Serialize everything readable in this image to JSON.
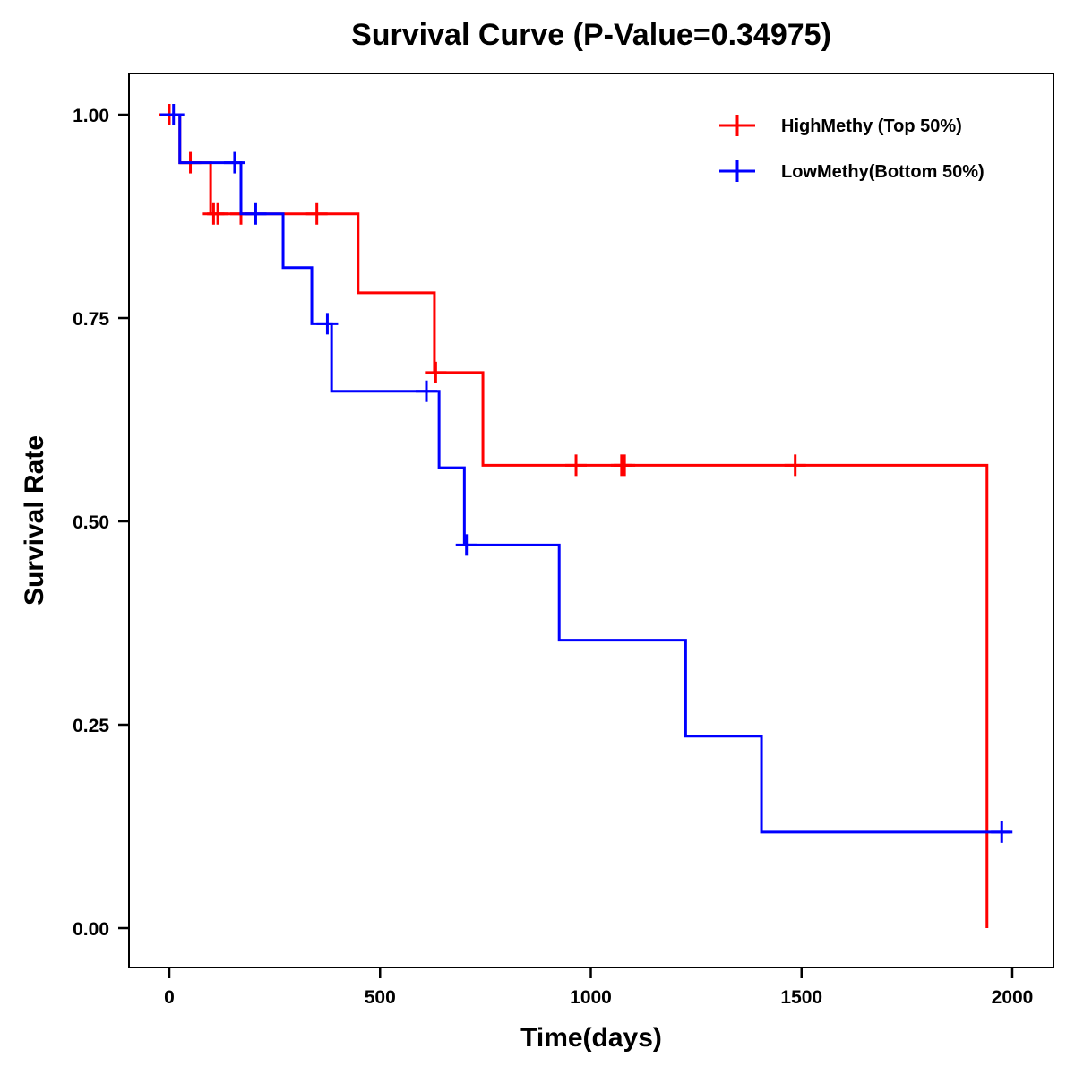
{
  "chart_data": {
    "type": "line",
    "subtype": "kaplan-meier-step",
    "title": "Survival Curve (P-Value=0.34975)",
    "xlabel": "Time(days)",
    "ylabel": "Survival Rate",
    "xlim": [
      -100,
      2080
    ],
    "ylim": [
      -0.05,
      1.05
    ],
    "x_ticks": [
      0,
      500,
      1000,
      1500,
      2000
    ],
    "x_tick_labels": [
      "0",
      "500",
      "1000",
      "1500",
      "2000"
    ],
    "y_ticks": [
      0.0,
      0.25,
      0.5,
      0.75,
      1.0
    ],
    "y_tick_labels": [
      "0.00",
      "0.25",
      "0.50",
      "0.75",
      "1.00"
    ],
    "grid": false,
    "legend_position": "top-right",
    "series": [
      {
        "name": "HighMethy (Top 50%)",
        "color": "#ff0000",
        "steps": [
          {
            "t": 0,
            "s": 1.0
          },
          {
            "t": 25,
            "s": 0.941
          },
          {
            "t": 98,
            "s": 0.878
          },
          {
            "t": 448,
            "s": 0.781
          },
          {
            "t": 629,
            "s": 0.683
          },
          {
            "t": 744,
            "s": 0.569
          },
          {
            "t": 1940,
            "s": 0.0
          }
        ],
        "end_t": 1940,
        "censored": [
          {
            "t": 0,
            "s": 1.0
          },
          {
            "t": 50,
            "s": 0.941
          },
          {
            "t": 105,
            "s": 0.878
          },
          {
            "t": 115,
            "s": 0.878
          },
          {
            "t": 170,
            "s": 0.878
          },
          {
            "t": 350,
            "s": 0.878
          },
          {
            "t": 632,
            "s": 0.683
          },
          {
            "t": 965,
            "s": 0.569
          },
          {
            "t": 1073,
            "s": 0.569
          },
          {
            "t": 1080,
            "s": 0.569
          },
          {
            "t": 1485,
            "s": 0.569
          }
        ]
      },
      {
        "name": "LowMethy(Bottom 50%)",
        "color": "#0000ff",
        "steps": [
          {
            "t": 0,
            "s": 1.0
          },
          {
            "t": 25,
            "s": 0.941
          },
          {
            "t": 170,
            "s": 0.878
          },
          {
            "t": 270,
            "s": 0.812
          },
          {
            "t": 338,
            "s": 0.743
          },
          {
            "t": 385,
            "s": 0.66
          },
          {
            "t": 640,
            "s": 0.566
          },
          {
            "t": 700,
            "s": 0.471
          },
          {
            "t": 925,
            "s": 0.354
          },
          {
            "t": 1225,
            "s": 0.236
          },
          {
            "t": 1405,
            "s": 0.118
          }
        ],
        "end_t": 1995,
        "censored": [
          {
            "t": 10,
            "s": 1.0
          },
          {
            "t": 155,
            "s": 0.941
          },
          {
            "t": 205,
            "s": 0.878
          },
          {
            "t": 375,
            "s": 0.743
          },
          {
            "t": 610,
            "s": 0.66
          },
          {
            "t": 705,
            "s": 0.471
          },
          {
            "t": 1975,
            "s": 0.118
          }
        ]
      }
    ]
  }
}
